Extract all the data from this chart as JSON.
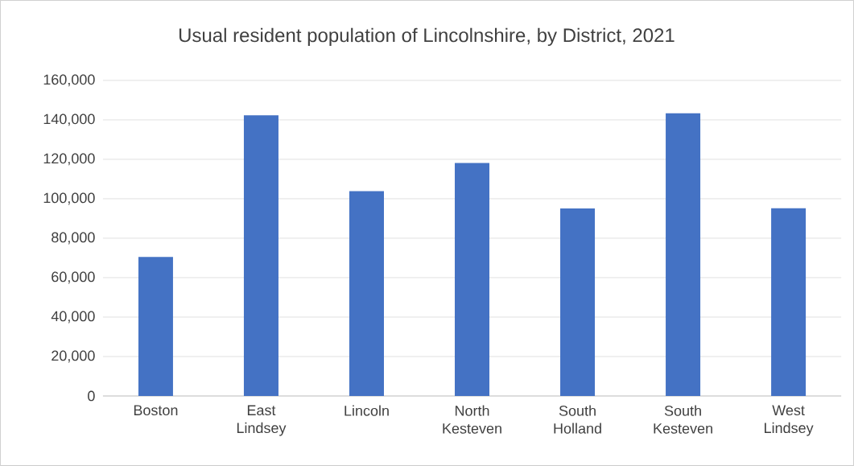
{
  "chart_data": {
    "type": "bar",
    "title": "Usual resident population of Lincolnshire, by District, 2021",
    "categories": [
      "Boston",
      "East Lindsey",
      "Lincoln",
      "North Kesteven",
      "South Holland",
      "South Kesteven",
      "West Lindsey"
    ],
    "values": [
      70500,
      142300,
      103900,
      118100,
      95100,
      143400,
      95200
    ],
    "color": "#4472c4",
    "ylim": [
      0,
      160000
    ],
    "yticks": [
      0,
      {
        "value": 20000,
        "label": "20,000"
      },
      {
        "value": 40000,
        "label": "40,000"
      },
      {
        "value": 60000,
        "label": "60,000"
      },
      {
        "value": 80000,
        "label": "80,000"
      },
      {
        "value": 100000,
        "label": "100,000"
      },
      {
        "value": 120000,
        "label": "120,000"
      },
      {
        "value": 140000,
        "label": "140,000"
      },
      {
        "value": 160000,
        "label": "160,000"
      }
    ],
    "grid": "y"
  }
}
